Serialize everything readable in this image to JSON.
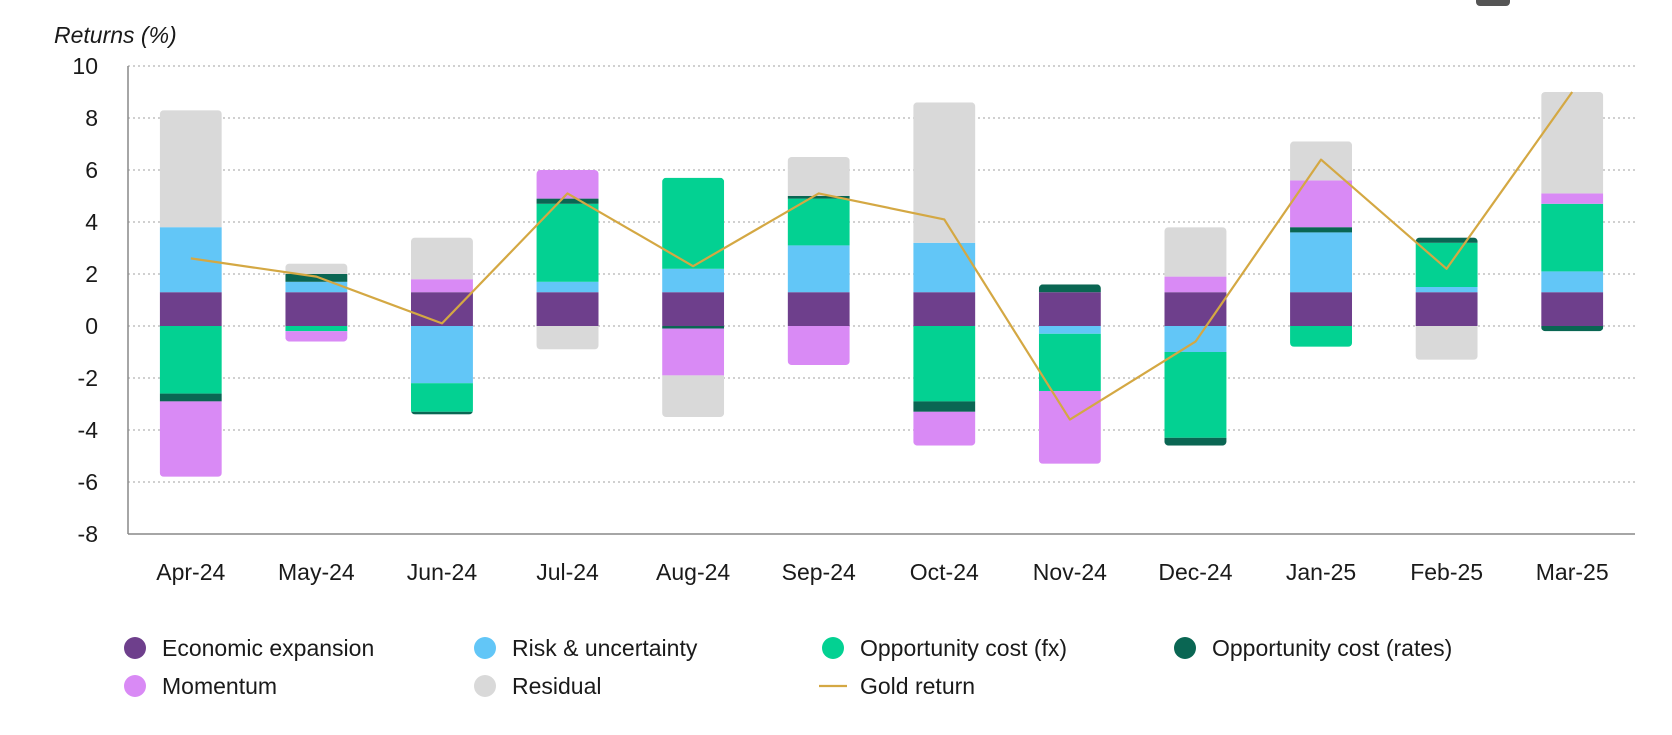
{
  "chart_data": {
    "type": "bar",
    "stacked": true,
    "ylabel": "Returns (%)",
    "xlabel": "",
    "ylim": [
      -8,
      10
    ],
    "yticks": [
      10,
      8,
      6,
      4,
      2,
      0,
      -2,
      -4,
      -6,
      -8
    ],
    "grid": "horizontal-dotted",
    "legend_position": "bottom",
    "categories": [
      "Apr-24",
      "May-24",
      "Jun-24",
      "Jul-24",
      "Aug-24",
      "Sep-24",
      "Oct-24",
      "Nov-24",
      "Dec-24",
      "Jan-25",
      "Feb-25",
      "Mar-25"
    ],
    "series": [
      {
        "name": "Economic expansion",
        "color": "#6e3f8c",
        "values": [
          1.3,
          1.3,
          1.3,
          1.3,
          1.3,
          1.3,
          1.3,
          1.3,
          1.3,
          1.3,
          1.3,
          1.3
        ]
      },
      {
        "name": "Risk & uncertainty",
        "color": "#62c6f7",
        "values": [
          2.5,
          0.4,
          -2.2,
          0.4,
          0.9,
          1.8,
          1.9,
          -0.3,
          -1.0,
          2.3,
          0.2,
          0.8
        ]
      },
      {
        "name": "Opportunity cost (fx)",
        "color": "#03d192",
        "values": [
          -2.6,
          -0.2,
          -1.1,
          3.0,
          3.5,
          1.8,
          -2.9,
          -2.2,
          -3.3,
          -0.8,
          1.7,
          2.6
        ]
      },
      {
        "name": "Opportunity cost (rates)",
        "color": "#0a6653",
        "values": [
          -0.3,
          0.3,
          -0.1,
          0.2,
          -0.1,
          0.1,
          -0.4,
          0.3,
          -0.3,
          0.2,
          0.2,
          -0.2
        ]
      },
      {
        "name": "Momentum",
        "color": "#d98af5",
        "values": [
          -2.9,
          -0.4,
          0.5,
          1.1,
          -1.8,
          -1.5,
          -1.3,
          -2.8,
          0.6,
          1.8,
          0.0,
          0.4
        ]
      },
      {
        "name": "Residual",
        "color": "#d9d9d9",
        "values": [
          4.5,
          0.4,
          1.6,
          -0.9,
          -1.6,
          1.5,
          5.4,
          0.0,
          1.9,
          1.5,
          -1.3,
          3.9
        ]
      }
    ],
    "line": {
      "name": "Gold return",
      "color": "#d4a843",
      "values": [
        2.6,
        1.9,
        0.1,
        5.1,
        2.3,
        5.1,
        4.1,
        -3.6,
        -0.6,
        6.4,
        2.2,
        9.0
      ]
    },
    "legend": [
      {
        "name": "Economic expansion",
        "kind": "dot",
        "color": "#6e3f8c"
      },
      {
        "name": "Risk & uncertainty",
        "kind": "dot",
        "color": "#62c6f7"
      },
      {
        "name": "Opportunity cost (fx)",
        "kind": "dot",
        "color": "#03d192"
      },
      {
        "name": "Opportunity cost (rates)",
        "kind": "dot",
        "color": "#0a6653"
      },
      {
        "name": "Momentum",
        "kind": "dot",
        "color": "#d98af5"
      },
      {
        "name": "Residual",
        "kind": "dot",
        "color": "#d9d9d9"
      },
      {
        "name": "Gold return",
        "kind": "line",
        "color": "#d4a843"
      }
    ]
  }
}
